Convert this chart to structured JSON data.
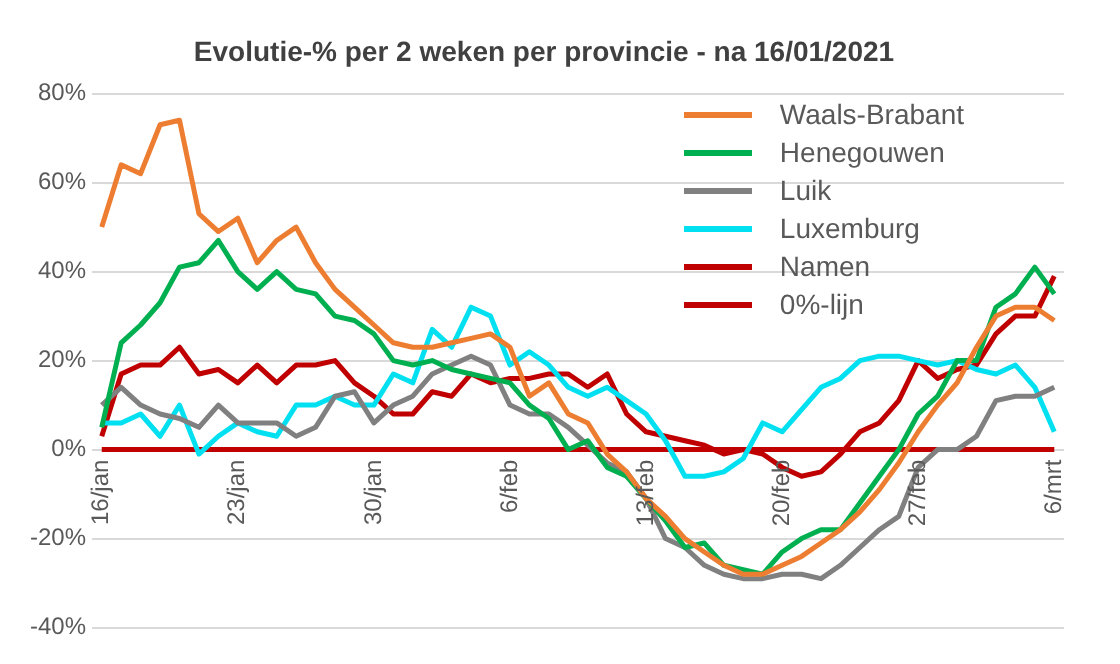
{
  "chart_data": {
    "type": "line",
    "title": "Evolutie-% per 2 weken per provincie - na 16/01/2021",
    "categories": [
      "16/jan",
      null,
      null,
      null,
      null,
      null,
      null,
      "23/jan",
      null,
      null,
      null,
      null,
      null,
      null,
      "30/jan",
      null,
      null,
      null,
      null,
      null,
      null,
      "6/feb",
      null,
      null,
      null,
      null,
      null,
      null,
      "13/feb",
      null,
      null,
      null,
      null,
      null,
      null,
      "20/feb",
      null,
      null,
      null,
      null,
      null,
      null,
      "27/feb",
      null,
      null,
      null,
      null,
      null,
      null,
      "6/mrt"
    ],
    "series": [
      {
        "name": "Waals-Brabant",
        "color": "#ed7d31",
        "values": [
          50,
          64,
          62,
          73,
          74,
          53,
          49,
          52,
          42,
          47,
          50,
          42,
          36,
          32,
          28,
          24,
          23,
          23,
          24,
          25,
          26,
          23,
          12,
          15,
          8,
          6,
          -1,
          -5,
          -11,
          -15,
          -20,
          -23,
          -26,
          -28,
          -28,
          -26,
          -24,
          -21,
          -18,
          -14,
          -9,
          -3,
          4,
          10,
          15,
          23,
          30,
          32,
          32,
          29
        ]
      },
      {
        "name": "Henegouwen",
        "color": "#00b050",
        "values": [
          5,
          24,
          28,
          33,
          41,
          42,
          47,
          40,
          36,
          40,
          36,
          35,
          30,
          29,
          26,
          20,
          19,
          20,
          18,
          17,
          16,
          15,
          10,
          7,
          0,
          2,
          -4,
          -6,
          -11,
          -16,
          -22,
          -21,
          -26,
          -27,
          -28,
          -23,
          -20,
          -18,
          -18,
          -12,
          -6,
          0,
          8,
          12,
          20,
          20,
          32,
          35,
          41,
          35
        ]
      },
      {
        "name": "Luik",
        "color": "#808080",
        "values": [
          10,
          14,
          10,
          8,
          7,
          5,
          10,
          6,
          6,
          6,
          3,
          5,
          12,
          13,
          6,
          10,
          12,
          17,
          19,
          21,
          19,
          10,
          8,
          8,
          5,
          1,
          -3,
          -5,
          -11,
          -20,
          -22,
          -26,
          -28,
          -29,
          -29,
          -28,
          -28,
          -29,
          -26,
          -22,
          -18,
          -15,
          -4,
          0,
          0,
          3,
          11,
          12,
          12,
          14
        ]
      },
      {
        "name": "Luxemburg",
        "color": "#00e0f0",
        "values": [
          6,
          6,
          8,
          3,
          10,
          -1,
          3,
          6,
          4,
          3,
          10,
          10,
          12,
          10,
          10,
          17,
          15,
          27,
          23,
          32,
          30,
          19,
          22,
          19,
          14,
          12,
          14,
          11,
          8,
          2,
          -6,
          -6,
          -5,
          -2,
          6,
          4,
          9,
          14,
          16,
          20,
          21,
          21,
          20,
          19,
          20,
          18,
          17,
          19,
          14,
          4
        ]
      },
      {
        "name": "Namen",
        "color": "#c00000",
        "values": [
          3,
          17,
          19,
          19,
          23,
          17,
          18,
          15,
          19,
          15,
          19,
          19,
          20,
          15,
          12,
          8,
          8,
          13,
          12,
          17,
          15,
          16,
          16,
          17,
          17,
          14,
          17,
          8,
          4,
          3,
          2,
          1,
          -1,
          0,
          -1,
          -4,
          -6,
          -5,
          -1,
          4,
          6,
          11,
          20,
          16,
          18,
          19,
          26,
          30,
          30,
          39
        ]
      },
      {
        "name": "0%-lijn",
        "color": "#c00000",
        "values": [
          0,
          0,
          0,
          0,
          0,
          0,
          0,
          0,
          0,
          0,
          0,
          0,
          0,
          0,
          0,
          0,
          0,
          0,
          0,
          0,
          0,
          0,
          0,
          0,
          0,
          0,
          0,
          0,
          0,
          0,
          0,
          0,
          0,
          0,
          0,
          0,
          0,
          0,
          0,
          0,
          0,
          0,
          0,
          0,
          0,
          0,
          0,
          0,
          0,
          0
        ]
      }
    ],
    "ylim": [
      -40,
      80
    ],
    "yticks": [
      {
        "value": -40,
        "label": "-40%"
      },
      {
        "value": -20,
        "label": "-20%"
      },
      {
        "value": 0,
        "label": "0%"
      },
      {
        "value": 20,
        "label": "20%"
      },
      {
        "value": 40,
        "label": "40%"
      },
      {
        "value": 60,
        "label": "60%"
      },
      {
        "value": 80,
        "label": "80%"
      }
    ],
    "grid": "y",
    "legend": "top right",
    "marker": "none",
    "line_style": "solid"
  }
}
